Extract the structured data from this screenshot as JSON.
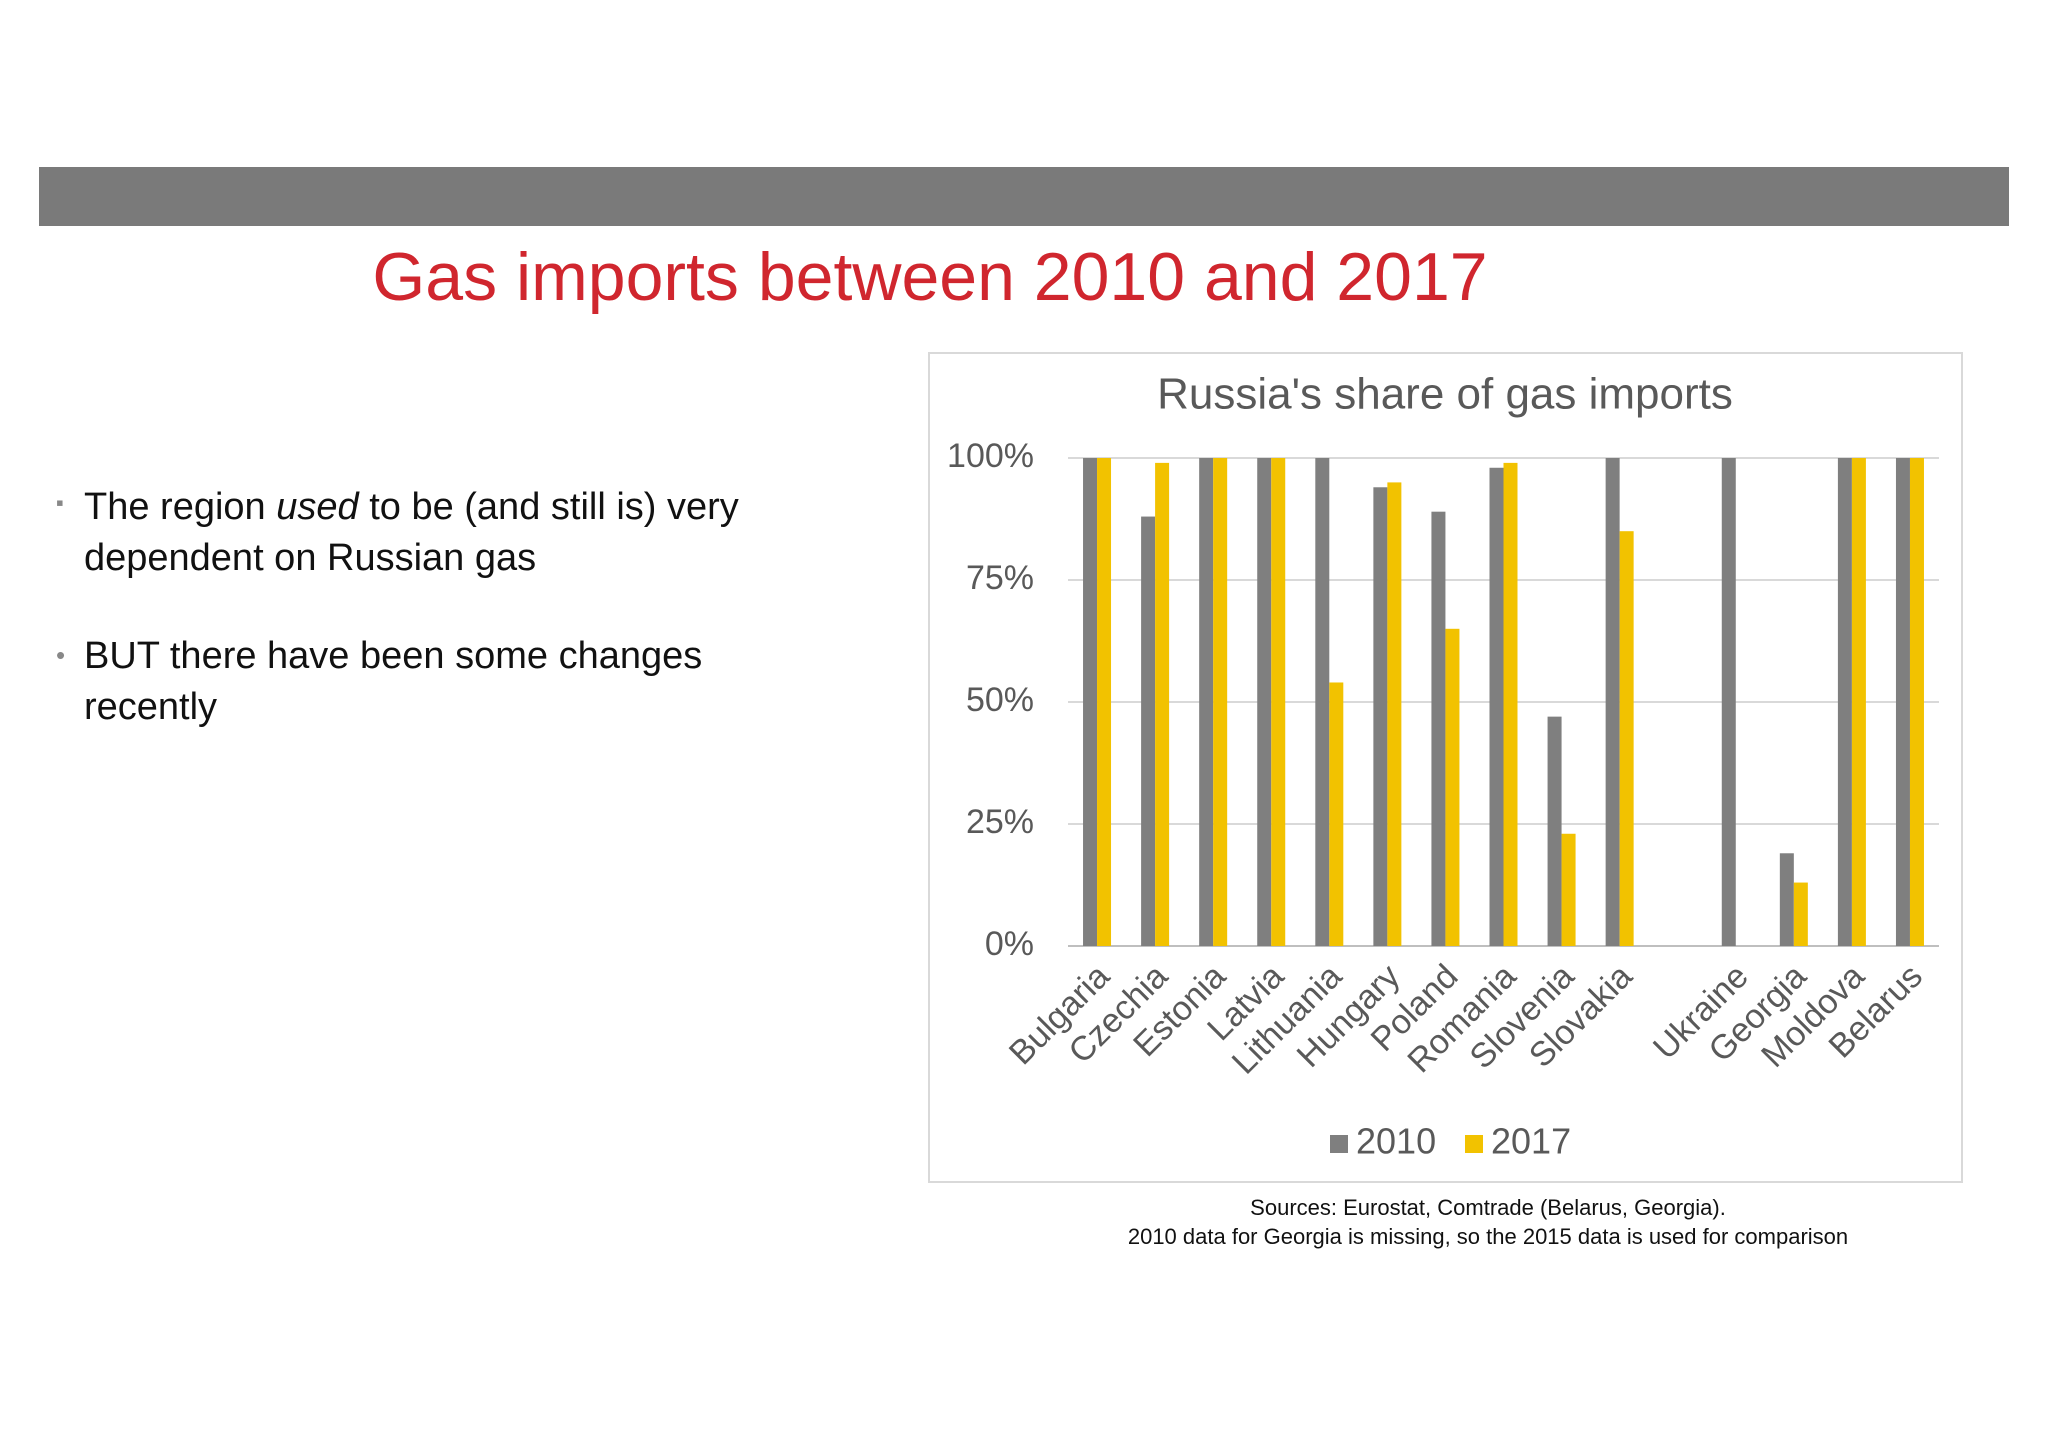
{
  "slide": {
    "title": "Gas imports between 2010 and 2017",
    "bullets": [
      {
        "parts": [
          "The region ",
          "used",
          " to be (and still is) very dependent on Russian gas"
        ]
      },
      {
        "parts": [
          "BUT there have been some changes recently"
        ]
      }
    ],
    "sources": [
      "Sources: Eurostat, Comtrade (Belarus, Georgia).",
      "2010 data for Georgia is missing, so the 2015 data is used for comparison"
    ]
  },
  "chart_data": {
    "type": "bar",
    "title": "Russia's share of gas imports",
    "categories": [
      "Bulgaria",
      "Czechia",
      "Estonia",
      "Latvia",
      "Lithuania",
      "Hungary",
      "Poland",
      "Romania",
      "Slovenia",
      "Slovakia",
      null,
      "Ukraine",
      "Georgia",
      "Moldova",
      "Belarus"
    ],
    "series": [
      {
        "name": "2010",
        "color": "#7f7f7f",
        "values": [
          100,
          88,
          100,
          100,
          100,
          94,
          89,
          98,
          47,
          100,
          null,
          100,
          19,
          100,
          100
        ]
      },
      {
        "name": "2017",
        "color": "#f2c200",
        "values": [
          100,
          99,
          100,
          100,
          54,
          95,
          65,
          99,
          23,
          85,
          null,
          0,
          13,
          100,
          100
        ]
      }
    ],
    "ylim": [
      0,
      100
    ],
    "yticks": [
      {
        "value": 0,
        "label": "0%"
      },
      {
        "value": 25,
        "label": "25%"
      },
      {
        "value": 50,
        "label": "50%"
      },
      {
        "value": 75,
        "label": "75%"
      },
      {
        "value": 100,
        "label": "100%"
      }
    ],
    "grid": true,
    "legend": "bottom"
  }
}
